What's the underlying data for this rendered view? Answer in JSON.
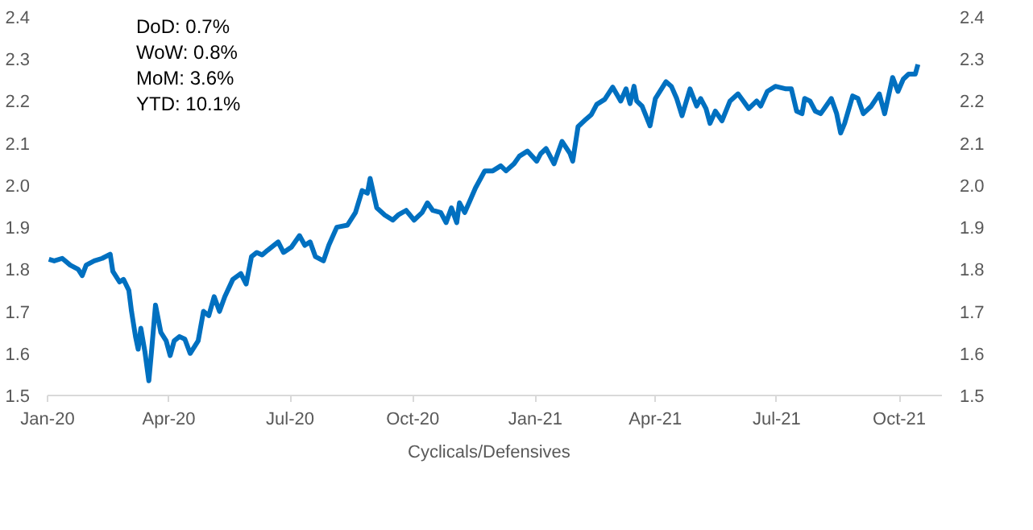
{
  "chart_data": {
    "type": "line",
    "x": [
      "2020-01-02",
      "2020-01-06",
      "2020-01-12",
      "2020-01-18",
      "2020-01-24",
      "2020-01-27",
      "2020-01-30",
      "2020-02-05",
      "2020-02-11",
      "2020-02-17",
      "2020-02-19",
      "2020-02-24",
      "2020-02-27",
      "2020-03-02",
      "2020-03-04",
      "2020-03-07",
      "2020-03-09",
      "2020-03-11",
      "2020-03-14",
      "2020-03-17",
      "2020-03-19",
      "2020-03-22",
      "2020-03-26",
      "2020-03-30",
      "2020-04-02",
      "2020-04-05",
      "2020-04-09",
      "2020-04-13",
      "2020-04-17",
      "2020-04-23",
      "2020-04-27",
      "2020-05-01",
      "2020-05-05",
      "2020-05-09",
      "2020-05-13",
      "2020-05-19",
      "2020-05-25",
      "2020-05-29",
      "2020-06-02",
      "2020-06-06",
      "2020-06-10",
      "2020-06-14",
      "2020-06-22",
      "2020-06-26",
      "2020-07-02",
      "2020-07-08",
      "2020-07-12",
      "2020-07-16",
      "2020-07-20",
      "2020-07-26",
      "2020-07-30",
      "2020-08-05",
      "2020-08-13",
      "2020-08-19",
      "2020-08-24",
      "2020-08-28",
      "2020-08-30",
      "2020-09-04",
      "2020-09-10",
      "2020-09-16",
      "2020-09-20",
      "2020-09-26",
      "2020-10-02",
      "2020-10-08",
      "2020-10-12",
      "2020-10-16",
      "2020-10-22",
      "2020-10-26",
      "2020-10-30",
      "2020-11-03",
      "2020-11-05",
      "2020-11-09",
      "2020-11-13",
      "2020-11-17",
      "2020-11-24",
      "2020-11-30",
      "2020-12-06",
      "2020-12-10",
      "2020-12-16",
      "2020-12-20",
      "2020-12-26",
      "2021-01-02",
      "2021-01-05",
      "2021-01-09",
      "2021-01-15",
      "2021-01-21",
      "2021-01-27",
      "2021-01-29",
      "2021-02-02",
      "2021-02-08",
      "2021-02-12",
      "2021-02-16",
      "2021-02-22",
      "2021-02-28",
      "2021-03-06",
      "2021-03-10",
      "2021-03-13",
      "2021-03-16",
      "2021-03-18",
      "2021-03-22",
      "2021-03-28",
      "2021-04-01",
      "2021-04-09",
      "2021-04-13",
      "2021-04-17",
      "2021-04-21",
      "2021-04-27",
      "2021-05-02",
      "2021-05-05",
      "2021-05-09",
      "2021-05-12",
      "2021-05-16",
      "2021-05-21",
      "2021-05-27",
      "2021-06-02",
      "2021-06-06",
      "2021-06-10",
      "2021-06-16",
      "2021-06-19",
      "2021-06-24",
      "2021-06-30",
      "2021-07-08",
      "2021-07-12",
      "2021-07-16",
      "2021-07-20",
      "2021-07-22",
      "2021-07-26",
      "2021-07-30",
      "2021-08-03",
      "2021-08-07",
      "2021-08-11",
      "2021-08-15",
      "2021-08-18",
      "2021-08-21",
      "2021-08-27",
      "2021-08-31",
      "2021-09-04",
      "2021-09-10",
      "2021-09-16",
      "2021-09-20",
      "2021-09-26",
      "2021-09-30",
      "2021-10-04",
      "2021-10-08",
      "2021-10-13",
      "2021-10-15"
    ],
    "series": [
      {
        "name": "Cyclicals/Defensives",
        "color": "#0070c0",
        "values": [
          1.824,
          1.82,
          1.826,
          1.81,
          1.8,
          1.785,
          1.81,
          1.82,
          1.826,
          1.836,
          1.795,
          1.77,
          1.776,
          1.75,
          1.7,
          1.64,
          1.61,
          1.66,
          1.605,
          1.535,
          1.605,
          1.715,
          1.65,
          1.63,
          1.595,
          1.63,
          1.64,
          1.634,
          1.6,
          1.63,
          1.7,
          1.69,
          1.735,
          1.7,
          1.735,
          1.776,
          1.79,
          1.765,
          1.83,
          1.84,
          1.834,
          1.845,
          1.865,
          1.84,
          1.853,
          1.88,
          1.857,
          1.865,
          1.83,
          1.82,
          1.857,
          1.9,
          1.905,
          1.935,
          1.987,
          1.981,
          2.016,
          1.946,
          1.929,
          1.917,
          1.929,
          1.94,
          1.917,
          1.935,
          1.958,
          1.94,
          1.935,
          1.911,
          1.946,
          1.911,
          1.958,
          1.935,
          1.964,
          1.993,
          2.034,
          2.034,
          2.046,
          2.034,
          2.051,
          2.069,
          2.081,
          2.057,
          2.075,
          2.087,
          2.051,
          2.104,
          2.075,
          2.057,
          2.139,
          2.157,
          2.168,
          2.192,
          2.204,
          2.233,
          2.2,
          2.229,
          2.194,
          2.235,
          2.2,
          2.188,
          2.141,
          2.206,
          2.246,
          2.235,
          2.206,
          2.165,
          2.229,
          2.188,
          2.206,
          2.182,
          2.147,
          2.176,
          2.153,
          2.2,
          2.217,
          2.2,
          2.182,
          2.2,
          2.188,
          2.223,
          2.235,
          2.229,
          2.229,
          2.176,
          2.17,
          2.206,
          2.2,
          2.176,
          2.17,
          2.188,
          2.206,
          2.17,
          2.124,
          2.147,
          2.212,
          2.206,
          2.17,
          2.188,
          2.217,
          2.17,
          2.256,
          2.223,
          2.252,
          2.264,
          2.264,
          2.287
        ]
      }
    ],
    "xlim": [
      "2020-01-01",
      "2021-11-02"
    ],
    "xticks": [
      {
        "value": "2020-01-01",
        "label": "Jan-20"
      },
      {
        "value": "2020-04-01",
        "label": "Apr-20"
      },
      {
        "value": "2020-07-01",
        "label": "Jul-20"
      },
      {
        "value": "2020-10-01",
        "label": "Oct-20"
      },
      {
        "value": "2021-01-01",
        "label": "Jan-21"
      },
      {
        "value": "2021-04-01",
        "label": "Apr-21"
      },
      {
        "value": "2021-07-01",
        "label": "Jul-21"
      },
      {
        "value": "2021-10-01",
        "label": "Oct-21"
      }
    ],
    "ylim": [
      1.5,
      2.4
    ],
    "yticks": [
      {
        "value": 1.5,
        "label": "1.5"
      },
      {
        "value": 1.6,
        "label": "1.6"
      },
      {
        "value": 1.7,
        "label": "1.7"
      },
      {
        "value": 1.8,
        "label": "1.8"
      },
      {
        "value": 1.9,
        "label": "1.9"
      },
      {
        "value": 2.0,
        "label": "2.0"
      },
      {
        "value": 2.1,
        "label": "2.1"
      },
      {
        "value": 2.2,
        "label": "2.2"
      },
      {
        "value": 2.3,
        "label": "2.3"
      },
      {
        "value": 2.4,
        "label": "2.4"
      }
    ],
    "y2lim": [
      1.5,
      2.4
    ],
    "y2ticks": [
      {
        "value": 1.5,
        "label": "1.5"
      },
      {
        "value": 1.6,
        "label": "1.6"
      },
      {
        "value": 1.7,
        "label": "1.7"
      },
      {
        "value": 1.8,
        "label": "1.8"
      },
      {
        "value": 1.9,
        "label": "1.9"
      },
      {
        "value": 2.0,
        "label": "2.0"
      },
      {
        "value": 2.1,
        "label": "2.1"
      },
      {
        "value": 2.2,
        "label": "2.2"
      },
      {
        "value": 2.3,
        "label": "2.3"
      },
      {
        "value": 2.4,
        "label": "2.4"
      }
    ],
    "annotations": [
      "DoD:    0.7%",
      "WoW:  0.8%",
      "MoM:  3.6%",
      "YTD:      10.1%"
    ],
    "grid": false,
    "legend": "bottom",
    "marker": "none",
    "line_style": "solid"
  }
}
